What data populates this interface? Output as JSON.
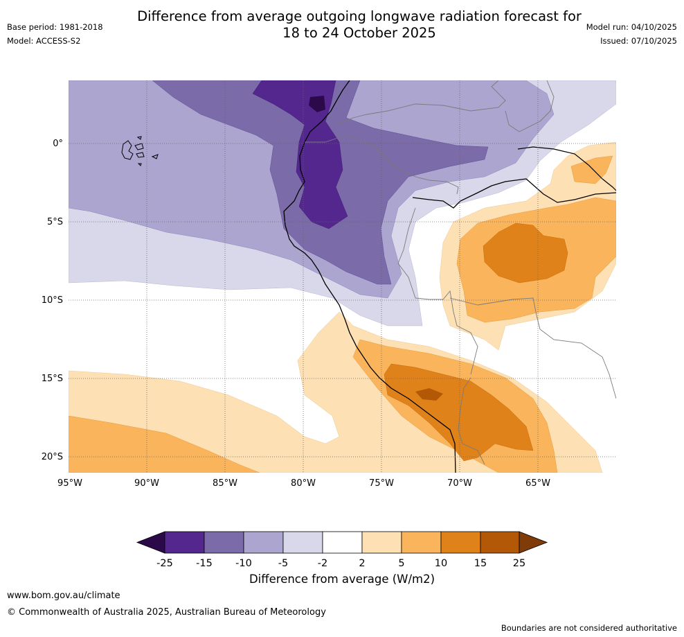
{
  "title_line1": "Difference from average outgoing longwave radiation forecast for",
  "title_line2": "18 to 24 October 2025",
  "meta": {
    "base_period": "Base period: 1981-2018",
    "model": "Model: ACCESS-S2",
    "model_run": "Model run: 04/10/2025",
    "issued": "Issued: 07/10/2025"
  },
  "axes": {
    "lat_labels": [
      "0°",
      "5°S",
      "10°S",
      "15°S",
      "20°S"
    ],
    "lon_labels": [
      "95°W",
      "90°W",
      "85°W",
      "80°W",
      "75°W",
      "70°W",
      "65°W"
    ]
  },
  "colorbar": {
    "label": "Difference from average (W/m2)",
    "ticks": [
      "-25",
      "-15",
      "-10",
      "-5",
      "-2",
      "2",
      "5",
      "10",
      "15",
      "25"
    ],
    "colors": {
      "lt_minus25": "#2c0a4a",
      "m25_m15": "#54278f",
      "m15_m10": "#7b6ba8",
      "m10_m5": "#aba5cf",
      "m5_m2": "#d8d8ea",
      "m2_p2": "#ffffff",
      "p2_p5": "#fde0b4",
      "p5_p10": "#fab55c",
      "p10_p15": "#e0821a",
      "p15_p25": "#b35806",
      "gt_p25": "#7f3b08"
    }
  },
  "footer": {
    "url": "www.bom.gov.au/climate",
    "copyright": "© Commonwealth of Australia 2025, Australian Bureau of Meteorology",
    "note": "Boundaries are not considered authoritative"
  }
}
